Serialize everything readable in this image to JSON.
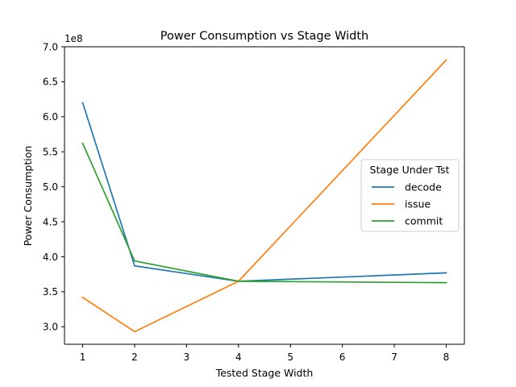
{
  "chart_data": {
    "type": "line",
    "title": "Power Consumption vs Stage Width",
    "xlabel": "Tested Stage Width",
    "ylabel": "Power Consumption",
    "y_multiplier_label": "1e8",
    "x": [
      1,
      2,
      4,
      8
    ],
    "xlim": [
      0.65,
      8.35
    ],
    "ylim": [
      2.75,
      7.0
    ],
    "x_ticks": [
      "1",
      "2",
      "3",
      "4",
      "5",
      "6",
      "7",
      "8"
    ],
    "y_ticks": [
      "3.0",
      "3.5",
      "4.0",
      "4.5",
      "5.0",
      "5.5",
      "6.0",
      "6.5",
      "7.0"
    ],
    "legend_title": "Stage Under Tst",
    "legend_position": "center-right",
    "grid": false,
    "series": [
      {
        "name": "decode",
        "color": "#1f77b4",
        "values": [
          6.2,
          3.87,
          3.65,
          3.77
        ]
      },
      {
        "name": "issue",
        "color": "#ff7f0e",
        "values": [
          3.42,
          2.93,
          3.65,
          6.81
        ]
      },
      {
        "name": "commit",
        "color": "#2ca02c",
        "values": [
          5.62,
          3.94,
          3.65,
          3.63
        ]
      }
    ]
  }
}
